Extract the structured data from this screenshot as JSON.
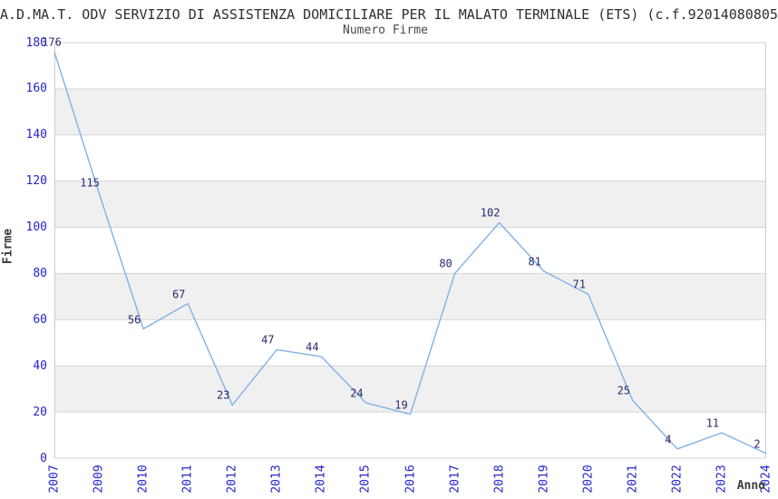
{
  "page": {
    "title": "A.D.MA.T. ODV SERVIZIO DI ASSISTENZA DOMICILIARE PER IL MALATO TERMINALE (ETS) (c.f.92014080805"
  },
  "chart_data": {
    "type": "line",
    "title": "A.D.MA.T. ODV SERVIZIO DI ASSISTENZA DOMICILIARE PER IL MALATO TERMINALE (ETS) (c.f.92014080805",
    "subtitle": "Numero Firme",
    "xlabel": "Anno",
    "ylabel": "Firme",
    "categories": [
      "2007",
      "2009",
      "2010",
      "2011",
      "2012",
      "2013",
      "2014",
      "2015",
      "2016",
      "2017",
      "2018",
      "2019",
      "2020",
      "2021",
      "2022",
      "2023",
      "2024"
    ],
    "values": [
      176,
      115,
      56,
      67,
      23,
      47,
      44,
      24,
      19,
      80,
      102,
      81,
      71,
      25,
      4,
      11,
      2
    ],
    "data_labels_visible": true,
    "ylim": [
      0,
      180
    ],
    "ytick_step": 20,
    "grid": "horizontal",
    "background_bands": "alternating gray every 20 units",
    "legend": "none",
    "colors": {
      "line": "#7fb2e8",
      "tick_label": "#2525cc",
      "data_label": "#28286e",
      "band_fill": "#f0f0f0",
      "gridline": "#d6d6d6",
      "plot_border": "#cccccc",
      "title_text": "#2f2f2f",
      "subtitle_text": "#4a4a4a"
    }
  }
}
